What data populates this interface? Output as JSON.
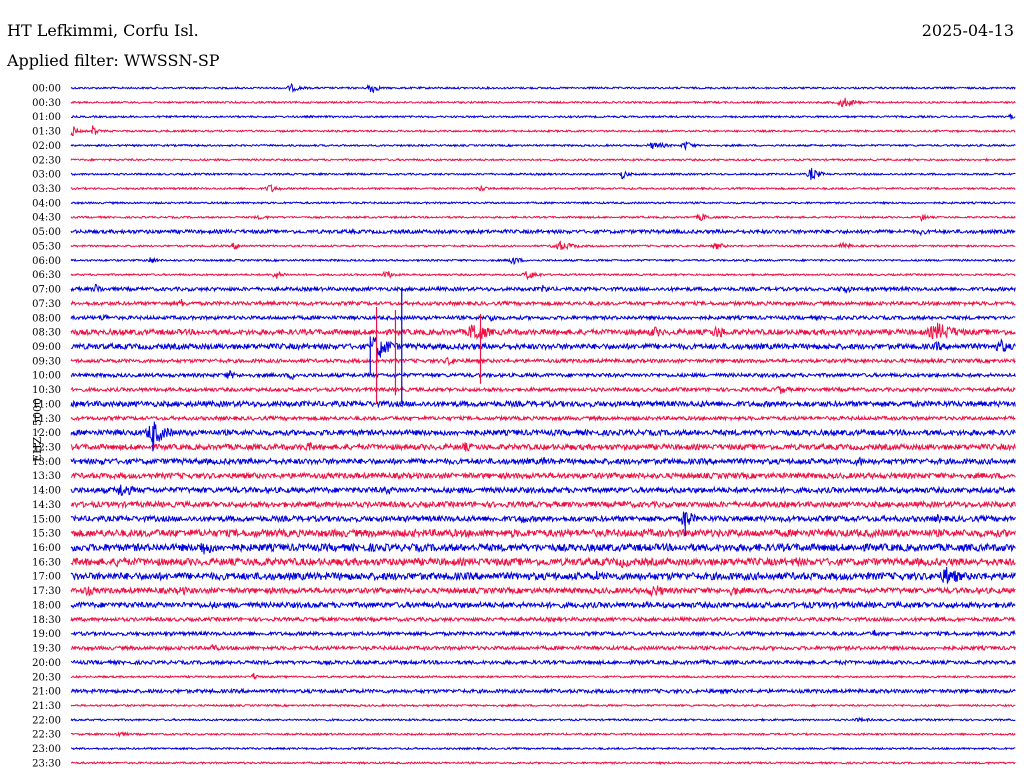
{
  "header": {
    "station": "HT Lefkimmi, Corfu Isl.",
    "date": "2025-04-13",
    "filter": "Applied filter: WWSSN-SP"
  },
  "chart_data": {
    "type": "line",
    "title": "HT Lefkimmi, Corfu Isl.",
    "date": "2025-04-13",
    "subtitle": "Applied filter: WWSSN-SP",
    "ylabel": "EHZ - 5000",
    "xlabel": "",
    "row_interval_minutes": 30,
    "minutes_per_row_span": 30,
    "colors": [
      "#0000dd",
      "#ee1144"
    ],
    "grid": false,
    "legend": "none",
    "categories": [
      "00:00",
      "00:30",
      "01:00",
      "01:30",
      "02:00",
      "02:30",
      "03:00",
      "03:30",
      "04:00",
      "04:30",
      "05:00",
      "05:30",
      "06:00",
      "06:30",
      "07:00",
      "07:30",
      "08:00",
      "08:30",
      "09:00",
      "09:30",
      "10:00",
      "10:30",
      "11:00",
      "11:30",
      "12:00",
      "12:30",
      "13:00",
      "13:30",
      "14:00",
      "14:30",
      "15:00",
      "15:30",
      "16:00",
      "16:30",
      "17:00",
      "17:30",
      "18:00",
      "18:30",
      "19:00",
      "19:30",
      "20:00",
      "20:30",
      "21:00",
      "21:30",
      "22:00",
      "22:30",
      "23:00",
      "23:30"
    ],
    "baseline_noise": [
      1,
      1,
      1,
      1,
      1,
      1,
      1,
      1,
      1,
      1,
      2,
      1,
      1,
      1,
      2,
      2,
      2,
      3,
      3,
      2,
      2,
      2,
      3,
      2,
      3,
      3,
      3,
      3,
      3,
      3,
      3,
      4,
      4,
      4,
      4,
      3,
      3,
      2,
      2,
      2,
      2,
      1,
      2,
      1,
      1,
      1,
      1,
      1
    ],
    "events": [
      {
        "row": 0,
        "minute": 7.0,
        "amplitude": 4,
        "duration_minutes": 0.8
      },
      {
        "row": 0,
        "minute": 9.5,
        "amplitude": 7,
        "duration_minutes": 0.5
      },
      {
        "row": 1,
        "minute": 24.5,
        "amplitude": 6,
        "duration_minutes": 0.8
      },
      {
        "row": 2,
        "minute": 29.8,
        "amplitude": 4,
        "duration_minutes": 0.3
      },
      {
        "row": 3,
        "minute": 0.0,
        "amplitude": 8,
        "duration_minutes": 0.4
      },
      {
        "row": 3,
        "minute": 0.7,
        "amplitude": 7,
        "duration_minutes": 0.3
      },
      {
        "row": 4,
        "minute": 18.5,
        "amplitude": 4,
        "duration_minutes": 1.0
      },
      {
        "row": 4,
        "minute": 19.5,
        "amplitude": 5,
        "duration_minutes": 0.6
      },
      {
        "row": 6,
        "minute": 17.5,
        "amplitude": 5,
        "duration_minutes": 0.5
      },
      {
        "row": 6,
        "minute": 23.5,
        "amplitude": 7,
        "duration_minutes": 0.6
      },
      {
        "row": 7,
        "minute": 6.3,
        "amplitude": 5,
        "duration_minutes": 0.6
      },
      {
        "row": 7,
        "minute": 13.0,
        "amplitude": 3,
        "duration_minutes": 0.8
      },
      {
        "row": 9,
        "minute": 6.0,
        "amplitude": 2,
        "duration_minutes": 1.5
      },
      {
        "row": 9,
        "minute": 20.0,
        "amplitude": 4,
        "duration_minutes": 0.8
      },
      {
        "row": 9,
        "minute": 27.0,
        "amplitude": 4,
        "duration_minutes": 0.5
      },
      {
        "row": 10,
        "minute": 27.0,
        "amplitude": 4,
        "duration_minutes": 0.5
      },
      {
        "row": 11,
        "minute": 5.2,
        "amplitude": 4,
        "duration_minutes": 0.6
      },
      {
        "row": 11,
        "minute": 15.5,
        "amplitude": 5,
        "duration_minutes": 1.2
      },
      {
        "row": 11,
        "minute": 20.5,
        "amplitude": 4,
        "duration_minutes": 0.6
      },
      {
        "row": 11,
        "minute": 24.5,
        "amplitude": 4,
        "duration_minutes": 0.6
      },
      {
        "row": 12,
        "minute": 2.5,
        "amplitude": 4,
        "duration_minutes": 0.6
      },
      {
        "row": 12,
        "minute": 14.0,
        "amplitude": 5,
        "duration_minutes": 0.6
      },
      {
        "row": 13,
        "minute": 6.5,
        "amplitude": 5,
        "duration_minutes": 0.6
      },
      {
        "row": 13,
        "minute": 10.0,
        "amplitude": 5,
        "duration_minutes": 0.6
      },
      {
        "row": 13,
        "minute": 14.5,
        "amplitude": 5,
        "duration_minutes": 0.8
      },
      {
        "row": 14,
        "minute": 0.8,
        "amplitude": 6,
        "duration_minutes": 0.5
      },
      {
        "row": 14,
        "minute": 15.0,
        "amplitude": 5,
        "duration_minutes": 0.5
      },
      {
        "row": 14,
        "minute": 24.5,
        "amplitude": 5,
        "duration_minutes": 0.8
      },
      {
        "row": 15,
        "minute": 3.5,
        "amplitude": 5,
        "duration_minutes": 0.5
      },
      {
        "row": 16,
        "minute": 1.0,
        "amplitude": 5,
        "duration_minutes": 0.5
      },
      {
        "row": 16,
        "minute": 13.3,
        "amplitude": 6,
        "duration_minutes": 0.5
      },
      {
        "row": 17,
        "minute": 12.8,
        "amplitude": 12,
        "duration_minutes": 1.0
      },
      {
        "row": 17,
        "minute": 18.5,
        "amplitude": 6,
        "duration_minutes": 1.0
      },
      {
        "row": 17,
        "minute": 20.5,
        "amplitude": 7,
        "duration_minutes": 1.0
      },
      {
        "row": 17,
        "minute": 27.5,
        "amplitude": 10,
        "duration_minutes": 1.6
      },
      {
        "row": 18,
        "minute": 9.7,
        "amplitude": 15,
        "duration_minutes": 1.0
      },
      {
        "row": 18,
        "minute": 29.5,
        "amplitude": 8,
        "duration_minutes": 0.8
      },
      {
        "row": 18,
        "minute": 27.5,
        "amplitude": 6,
        "duration_minutes": 0.6
      },
      {
        "row": 19,
        "minute": 12.0,
        "amplitude": 5,
        "duration_minutes": 0.8
      },
      {
        "row": 20,
        "minute": 5.0,
        "amplitude": 5,
        "duration_minutes": 0.8
      },
      {
        "row": 20,
        "minute": 7.0,
        "amplitude": 5,
        "duration_minutes": 0.6
      },
      {
        "row": 21,
        "minute": 22.5,
        "amplitude": 5,
        "duration_minutes": 0.8
      },
      {
        "row": 22,
        "minute": 20.0,
        "amplitude": 4,
        "duration_minutes": 0.6
      },
      {
        "row": 24,
        "minute": 2.6,
        "amplitude": 14,
        "duration_minutes": 1.0
      },
      {
        "row": 25,
        "minute": 7.5,
        "amplitude": 5,
        "duration_minutes": 1.2
      },
      {
        "row": 25,
        "minute": 12.5,
        "amplitude": 5,
        "duration_minutes": 1.0
      },
      {
        "row": 26,
        "minute": 1.0,
        "amplitude": 5,
        "duration_minutes": 0.5
      },
      {
        "row": 26,
        "minute": 15.0,
        "amplitude": 5,
        "duration_minutes": 0.6
      },
      {
        "row": 26,
        "minute": 25.0,
        "amplitude": 6,
        "duration_minutes": 0.6
      },
      {
        "row": 28,
        "minute": 1.6,
        "amplitude": 8,
        "duration_minutes": 1.0
      },
      {
        "row": 28,
        "minute": 10.0,
        "amplitude": 5,
        "duration_minutes": 0.8
      },
      {
        "row": 29,
        "minute": 17.5,
        "amplitude": 5,
        "duration_minutes": 0.6
      },
      {
        "row": 30,
        "minute": 14.3,
        "amplitude": 6,
        "duration_minutes": 0.6
      },
      {
        "row": 30,
        "minute": 19.5,
        "amplitude": 12,
        "duration_minutes": 0.6
      },
      {
        "row": 30,
        "minute": 27.5,
        "amplitude": 5,
        "duration_minutes": 0.6
      },
      {
        "row": 31,
        "minute": 8.5,
        "amplitude": 5,
        "duration_minutes": 0.8
      },
      {
        "row": 31,
        "minute": 14.0,
        "amplitude": 5,
        "duration_minutes": 0.6
      },
      {
        "row": 32,
        "minute": 1.0,
        "amplitude": 5,
        "duration_minutes": 0.8
      },
      {
        "row": 32,
        "minute": 4.2,
        "amplitude": 8,
        "duration_minutes": 1.2
      },
      {
        "row": 32,
        "minute": 9.5,
        "amplitude": 5,
        "duration_minutes": 0.8
      },
      {
        "row": 33,
        "minute": 1.5,
        "amplitude": 6,
        "duration_minutes": 1.2
      },
      {
        "row": 33,
        "minute": 6.0,
        "amplitude": 6,
        "duration_minutes": 1.0
      },
      {
        "row": 33,
        "minute": 17.5,
        "amplitude": 6,
        "duration_minutes": 1.2
      },
      {
        "row": 33,
        "minute": 23.0,
        "amplitude": 6,
        "duration_minutes": 0.8
      },
      {
        "row": 34,
        "minute": 8.0,
        "amplitude": 5,
        "duration_minutes": 0.6
      },
      {
        "row": 34,
        "minute": 16.7,
        "amplitude": 6,
        "duration_minutes": 0.5
      },
      {
        "row": 34,
        "minute": 27.8,
        "amplitude": 10,
        "duration_minutes": 1.2
      },
      {
        "row": 35,
        "minute": 0.5,
        "amplitude": 6,
        "duration_minutes": 0.8
      },
      {
        "row": 35,
        "minute": 3.5,
        "amplitude": 5,
        "duration_minutes": 1.0
      },
      {
        "row": 35,
        "minute": 18.5,
        "amplitude": 7,
        "duration_minutes": 1.2
      },
      {
        "row": 35,
        "minute": 21.0,
        "amplitude": 6,
        "duration_minutes": 0.8
      },
      {
        "row": 36,
        "minute": 4.5,
        "amplitude": 4,
        "duration_minutes": 0.6
      },
      {
        "row": 36,
        "minute": 20.5,
        "amplitude": 4,
        "duration_minutes": 0.8
      },
      {
        "row": 36,
        "minute": 23.5,
        "amplitude": 4,
        "duration_minutes": 0.6
      },
      {
        "row": 38,
        "minute": 25.5,
        "amplitude": 5,
        "duration_minutes": 0.4
      },
      {
        "row": 38,
        "minute": 29.9,
        "amplitude": 5,
        "duration_minutes": 0.2
      },
      {
        "row": 39,
        "minute": 4.5,
        "amplitude": 5,
        "duration_minutes": 0.5
      },
      {
        "row": 40,
        "minute": 5.3,
        "amplitude": 3,
        "duration_minutes": 0.6
      },
      {
        "row": 40,
        "minute": 18.0,
        "amplitude": 3,
        "duration_minutes": 0.6
      },
      {
        "row": 40,
        "minute": 20.0,
        "amplitude": 3,
        "duration_minutes": 0.6
      },
      {
        "row": 40,
        "minute": 24.5,
        "amplitude": 3,
        "duration_minutes": 0.6
      },
      {
        "row": 41,
        "minute": 5.8,
        "amplitude": 4,
        "duration_minutes": 0.4
      },
      {
        "row": 44,
        "minute": 25.0,
        "amplitude": 2,
        "duration_minutes": 1.6
      },
      {
        "row": 45,
        "minute": 1.5,
        "amplitude": 3,
        "duration_minutes": 0.8
      }
    ],
    "spikes": [
      {
        "row": 17,
        "minute": 9.7,
        "extent_rows": 5.0
      },
      {
        "row": 17,
        "minute": 10.3,
        "extent_rows": 4.4
      },
      {
        "row": 16,
        "minute": 10.5,
        "extent_rows": 6.0
      },
      {
        "row": 18,
        "minute": 9.5,
        "extent_rows": 2.0
      },
      {
        "row": 17,
        "minute": 13.0,
        "extent_rows": 3.6
      },
      {
        "row": 24,
        "minute": 2.6,
        "extent_rows": 1.3
      },
      {
        "row": 30,
        "minute": 19.5,
        "extent_rows": 1.2
      }
    ]
  }
}
